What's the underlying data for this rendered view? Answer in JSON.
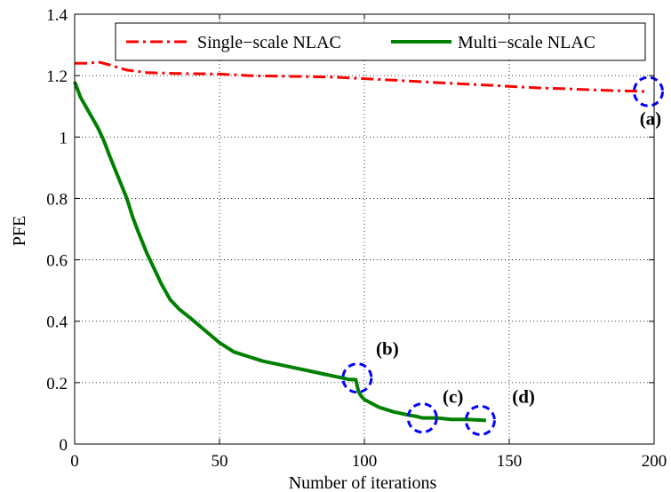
{
  "chart_data": {
    "type": "line",
    "title": "",
    "xlabel": "Number of iterations",
    "ylabel": "PFE",
    "xlim": [
      0,
      200
    ],
    "ylim": [
      0,
      1.4
    ],
    "xticks": [
      0,
      50,
      100,
      150,
      200
    ],
    "yticks": [
      0,
      0.2,
      0.4,
      0.6,
      0.8,
      1,
      1.2,
      1.4
    ],
    "xtick_labels": [
      "0",
      "50",
      "100",
      "150",
      "200"
    ],
    "ytick_labels": [
      "0",
      "0.2",
      "0.4",
      "0.6",
      "0.8",
      "1",
      "1.2",
      "1.4"
    ],
    "grid": true,
    "legend_position": "top-right",
    "series": [
      {
        "name": "Single−scale NLAC",
        "color": "#ff0000",
        "style": "dash-dot",
        "x": [
          0,
          5,
          8,
          12,
          18,
          25,
          35,
          50,
          60,
          70,
          80,
          90,
          100,
          110,
          120,
          130,
          140,
          150,
          160,
          170,
          180,
          190,
          198
        ],
        "y": [
          1.24,
          1.24,
          1.245,
          1.235,
          1.218,
          1.21,
          1.207,
          1.205,
          1.2,
          1.198,
          1.197,
          1.195,
          1.19,
          1.185,
          1.18,
          1.175,
          1.17,
          1.165,
          1.16,
          1.157,
          1.153,
          1.15,
          1.148
        ]
      },
      {
        "name": "Multi−scale NLAC",
        "color": "#008000",
        "style": "solid",
        "x": [
          0,
          2,
          5,
          8,
          10,
          12,
          15,
          18,
          20,
          22,
          25,
          28,
          30,
          33,
          36,
          40,
          45,
          50,
          55,
          60,
          65,
          70,
          75,
          80,
          85,
          90,
          95,
          97,
          98,
          99,
          100,
          105,
          110,
          115,
          118,
          120,
          125,
          130,
          135,
          140,
          142
        ],
        "y": [
          1.18,
          1.13,
          1.08,
          1.03,
          0.99,
          0.94,
          0.87,
          0.8,
          0.74,
          0.69,
          0.62,
          0.56,
          0.52,
          0.47,
          0.44,
          0.41,
          0.37,
          0.33,
          0.3,
          0.285,
          0.27,
          0.26,
          0.25,
          0.24,
          0.23,
          0.22,
          0.21,
          0.21,
          0.17,
          0.155,
          0.145,
          0.12,
          0.105,
          0.095,
          0.09,
          0.085,
          0.085,
          0.08,
          0.08,
          0.078,
          0.077
        ]
      }
    ],
    "annotations": [
      {
        "label": "(a)",
        "cx": 198,
        "cy": 1.148,
        "tx": 195,
        "ty": 1.04
      },
      {
        "label": "(b)",
        "cx": 97.5,
        "cy": 0.215,
        "tx": 104,
        "ty": 0.29
      },
      {
        "label": "(c)",
        "cx": 120,
        "cy": 0.085,
        "tx": 127,
        "ty": 0.135
      },
      {
        "label": "(d)",
        "cx": 140,
        "cy": 0.077,
        "tx": 151,
        "ty": 0.135
      }
    ],
    "highlight_color": "#0000ff"
  }
}
